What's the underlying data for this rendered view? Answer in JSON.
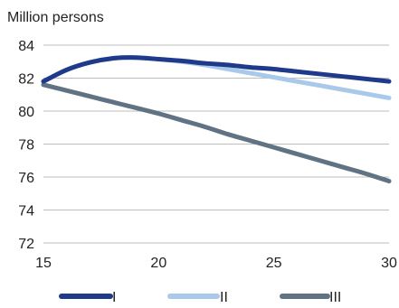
{
  "chart_data": {
    "type": "line",
    "ylabel": "Million persons",
    "xlim": [
      15,
      30
    ],
    "ylim": [
      72,
      84
    ],
    "x_ticks": [
      15,
      20,
      25,
      30
    ],
    "y_ticks": [
      72,
      74,
      76,
      78,
      80,
      82,
      84
    ],
    "grid": true,
    "legend_position": "bottom",
    "series": [
      {
        "name": "I",
        "color": "#1f3a8a",
        "x": [
          15,
          16,
          17,
          18,
          19,
          20,
          21,
          22,
          23,
          24,
          25,
          26,
          27,
          28,
          29,
          30
        ],
        "y": [
          81.8,
          82.5,
          82.95,
          83.2,
          83.25,
          83.15,
          83.05,
          82.9,
          82.8,
          82.65,
          82.55,
          82.4,
          82.25,
          82.1,
          81.95,
          81.8
        ]
      },
      {
        "name": "II",
        "color": "#a9c9ea",
        "x": [
          15,
          16,
          17,
          18,
          19,
          20,
          21,
          22,
          23,
          24,
          25,
          26,
          27,
          28,
          29,
          30
        ],
        "y": [
          81.8,
          82.5,
          82.95,
          83.2,
          83.25,
          83.15,
          83.0,
          82.8,
          82.55,
          82.3,
          82.05,
          81.8,
          81.55,
          81.3,
          81.05,
          80.8
        ]
      },
      {
        "name": "III",
        "color": "#5f7384",
        "x": [
          15,
          16,
          17,
          18,
          19,
          20,
          21,
          22,
          23,
          24,
          25,
          26,
          27,
          28,
          29,
          30
        ],
        "y": [
          81.6,
          81.25,
          80.9,
          80.55,
          80.2,
          79.85,
          79.45,
          79.05,
          78.6,
          78.2,
          77.8,
          77.4,
          77.0,
          76.6,
          76.2,
          75.75
        ]
      }
    ]
  }
}
